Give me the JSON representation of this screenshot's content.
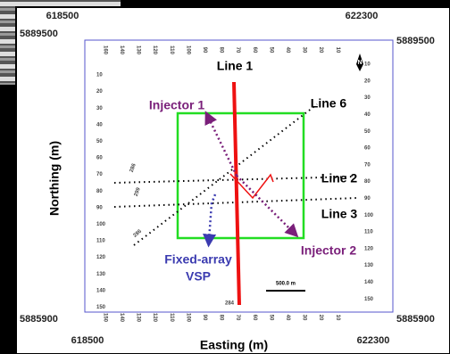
{
  "map": {
    "easting_labels": {
      "top_left": 618500,
      "top_right": 622300,
      "bottom_left": 618500,
      "bottom_right": 622300
    },
    "northing_labels": {
      "left_top": 5889500,
      "right_top": 5889500,
      "left_bottom": 5885900,
      "right_bottom": 5885900
    },
    "y_axis_label": "Northing (m)",
    "x_axis_label": "Easting (m)",
    "lines": {
      "line1": "Line 1",
      "line6": "Line 6",
      "line2": "Line 2",
      "line3": "Line 3"
    },
    "wells": {
      "injector1": "Injector 1",
      "injector2": "Injector 2",
      "vsp": [
        "Fixed-array",
        "VSP"
      ]
    },
    "scale_bar": "500.0 m",
    "north": "N",
    "station_labels": [
      286,
      299,
      286,
      284
    ],
    "left_ticks": [
      10,
      20,
      30,
      40,
      50,
      60,
      70,
      80,
      90,
      100,
      110,
      120,
      130,
      140,
      150
    ],
    "right_ticks": [
      10,
      20,
      30,
      40,
      50,
      60,
      70,
      80,
      90,
      100,
      110,
      120,
      130,
      140,
      150
    ],
    "top_ticks": [
      160,
      140,
      130,
      120,
      110,
      100,
      90,
      80,
      70,
      60,
      50,
      40,
      30,
      20,
      10
    ],
    "bottom_ticks": [
      150,
      140,
      130,
      120,
      110,
      100,
      90,
      80,
      70,
      60,
      50,
      40,
      30,
      20,
      10
    ]
  }
}
